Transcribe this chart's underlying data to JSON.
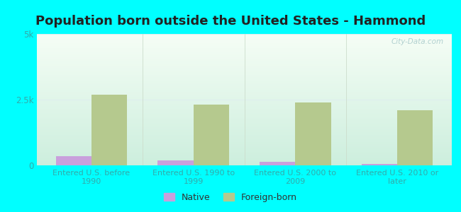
{
  "title": "Population born outside the United States - Hammond",
  "categories": [
    "Entered U.S. before\n1990",
    "Entered U.S. 1990 to\n1999",
    "Entered U.S. 2000 to\n2009",
    "Entered U.S. 2010 or\nlater"
  ],
  "native_values": [
    350,
    200,
    130,
    60
  ],
  "foreign_values": [
    2700,
    2300,
    2400,
    2100
  ],
  "native_color": "#c9a0dc",
  "foreign_color": "#b5c98e",
  "ylim": [
    0,
    5000
  ],
  "ytick_labels": [
    "0",
    "2.5k",
    "5k"
  ],
  "ytick_vals": [
    0,
    2500,
    5000
  ],
  "background_color": "#00ffff",
  "title_color": "#222222",
  "title_fontsize": 13,
  "axis_label_color": "#33aaaa",
  "tick_color": "#33aaaa",
  "bar_width": 0.35,
  "legend_native": "Native",
  "legend_foreign": "Foreign-born",
  "legend_text_color": "#333333",
  "watermark": "City-Data.com",
  "watermark_color": "#aacccc",
  "grid_color": "#ddeeee",
  "plot_bg_top": "#f0faf0",
  "plot_bg_bottom": "#ddf0dd"
}
